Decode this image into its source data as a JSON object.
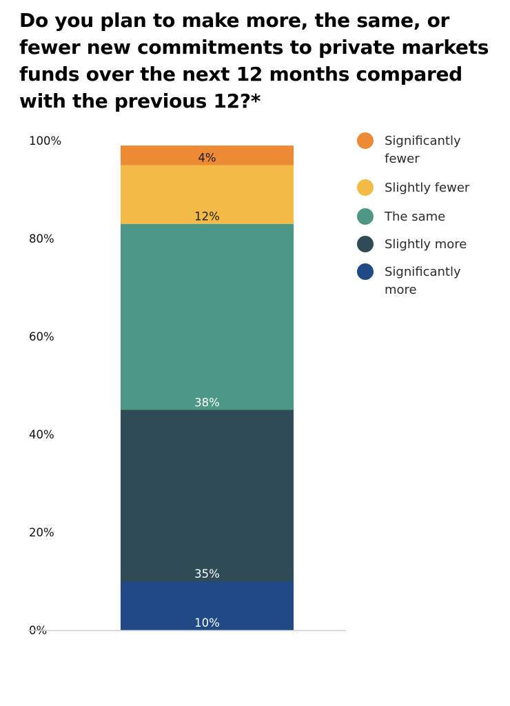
{
  "title": "Do you plan to make more, the same, or fewer new commitments to private markets funds over the next 12 months compared with the previous 12?*",
  "chart_data": {
    "type": "bar",
    "stacked": true,
    "categories": [
      ""
    ],
    "ylim": [
      0,
      100
    ],
    "yticks": [
      "0%",
      "20%",
      "40%",
      "60%",
      "80%",
      "100%"
    ],
    "grid": false,
    "legend_position": "right",
    "series": [
      {
        "name": "Significantly more",
        "values": [
          10
        ],
        "label": "10%",
        "color": "#1f4a85",
        "label_color": "#ffffff"
      },
      {
        "name": "Slightly more",
        "values": [
          35
        ],
        "label": "35%",
        "color": "#2e4b56",
        "label_color": "#ffffff"
      },
      {
        "name": "The same",
        "values": [
          38
        ],
        "label": "38%",
        "color": "#4c9786",
        "label_color": "#ffffff"
      },
      {
        "name": "Slightly fewer",
        "values": [
          12
        ],
        "label": "12%",
        "color": "#f3bb45",
        "label_color": "#1a1a1a"
      },
      {
        "name": "Significantly fewer",
        "values": [
          4
        ],
        "label": "4%",
        "color": "#ed8a35",
        "label_color": "#1a1a1a"
      }
    ]
  },
  "legend": [
    {
      "label": "Significantly fewer",
      "color": "#ed8a35"
    },
    {
      "label": "Slightly fewer",
      "color": "#f3bb45"
    },
    {
      "label": "The same",
      "color": "#4c9786"
    },
    {
      "label": "Slightly more",
      "color": "#2e4b56"
    },
    {
      "label": "Significantly more",
      "color": "#1f4a85"
    }
  ]
}
